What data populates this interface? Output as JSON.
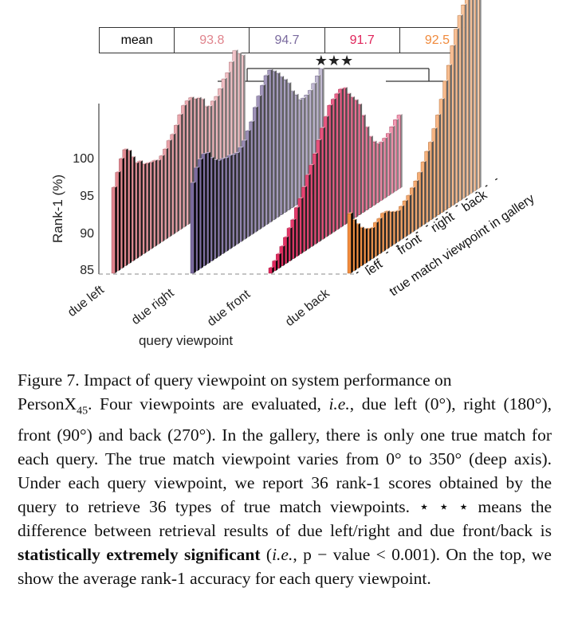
{
  "mean_table": {
    "label": "mean",
    "values": [
      {
        "text": "93.8",
        "color": "#e0838c"
      },
      {
        "text": "94.7",
        "color": "#7a6a9e"
      },
      {
        "text": "91.7",
        "color": "#e0245a"
      },
      {
        "text": "92.5",
        "color": "#f08a3c"
      }
    ]
  },
  "significance": "★★★",
  "chart_data": {
    "type": "bar",
    "ylabel": "Rank-1 (%)",
    "yticks": [
      "100",
      "95",
      "90",
      "85"
    ],
    "ylim": [
      85,
      111
    ],
    "xlabel": "query viewpoint",
    "query_viewpoints": [
      "due left",
      "due right",
      "due front",
      "due back"
    ],
    "depth_labels": [
      "left",
      "front",
      "right",
      "back"
    ],
    "depth_axis_label": "true match viewpoint in gallery",
    "series": [
      {
        "name": "due left",
        "color": "#e0838c",
        "values": [
          96.5,
          98.2,
          99.7,
          100.6,
          100.1,
          98.9,
          97.8,
          97.7,
          97.0,
          96.8,
          96.6,
          96.5,
          96.2,
          96.5,
          97.1,
          97.9,
          98.4,
          99.3,
          100.4,
          101.3,
          101.6,
          101.7,
          101.2,
          101.0,
          100.5,
          99.2,
          98.9,
          99.3,
          99.6,
          100.3,
          101.3,
          101.8,
          102.9,
          104.1,
          103.4,
          102.8
        ]
      },
      {
        "name": "due right",
        "color": "#7a6a9e",
        "values": [
          97.1,
          98.8,
          99.6,
          100.0,
          99.8,
          98.8,
          98.2,
          97.8,
          97.7,
          97.5,
          97.5,
          97.3,
          97.2,
          97.6,
          98.2,
          99.2,
          100.1,
          101.7,
          102.9,
          104.0,
          105.0,
          105.4,
          104.9,
          104.3,
          103.5,
          102.8,
          102.0,
          100.6,
          99.8,
          98.8,
          98.7,
          98.8,
          99.1,
          99.7,
          100.4,
          101.0
        ]
      },
      {
        "name": "due front",
        "color": "#e0245a",
        "values": [
          85.7,
          86.3,
          86.9,
          87.6,
          88.5,
          89.4,
          90.2,
          91.5,
          92.4,
          93.6,
          94.9,
          95.9,
          97.1,
          98.6,
          99.9,
          101.1,
          102.3,
          102.8,
          103.2,
          103.5,
          103.3,
          102.2,
          101.4,
          100.7,
          99.8,
          98.0,
          96.1,
          94.5,
          93.5,
          92.9,
          92.8,
          93.0,
          93.3,
          93.9,
          94.5,
          94.8
        ]
      },
      {
        "name": "due back",
        "color": "#f08a3c",
        "values": [
          93.0,
          91.8,
          90.9,
          90.1,
          89.6,
          89.3,
          89.1,
          89.5,
          89.7,
          90.1,
          90.0,
          89.6,
          89.3,
          89.1,
          89.4,
          89.8,
          90.2,
          90.9,
          91.5,
          92.3,
          93.4,
          94.5,
          95.4,
          96.9,
          98.4,
          100.2,
          102.3,
          104.1,
          106.4,
          108.3,
          109.8,
          110.9,
          111.6,
          111.5,
          111.2,
          110.8
        ]
      }
    ]
  },
  "caption": {
    "lead": "Figure 7. Impact of query viewpoint on system performance on",
    "a1": "PersonX",
    "a_sub": "45",
    "a2": ". Four viewpoints are evaluated,",
    "ie": "i.e.",
    "a3": ", due left (0°), right (180°), front (90°) and back (270°). In the gallery, there is only one true match for each query. The true match viewpoint varies from 0° to 350° (deep axis). Under each query viewpoint, we report 36 rank-1 scores obtained by the query to retrieve 36 types of true match viewpoints. ⋆ ⋆ ⋆ means the difference between retrieval results of due left/right and due front/back is",
    "bold": "statistically extremely significant",
    "b1": " (",
    "ie2": "i.e.",
    "b2": ", p − value < 0.001). On the top, we show the average rank-1 accuracy for each query viewpoint."
  }
}
